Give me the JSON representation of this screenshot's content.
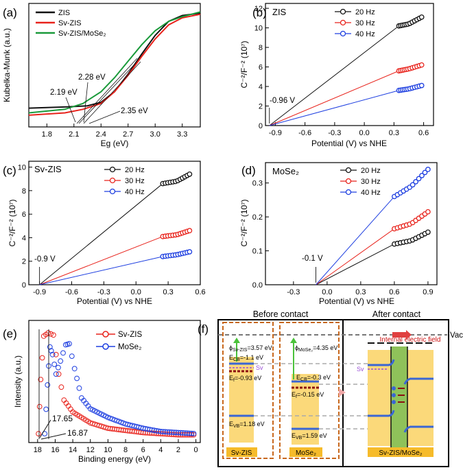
{
  "colors": {
    "black": "#111111",
    "red": "#e8221b",
    "green": "#1a9a3a",
    "blue": "#1d3ee0",
    "orange": "#c8671c",
    "yellow": "#fbd97a",
    "gold": "#f6bb2a",
    "lightgreen": "#8fc25a",
    "sv": "#9a4fd6",
    "darkred": "#8c1010"
  },
  "chart_data": [
    {
      "panel": "(a)",
      "type": "line",
      "xlabel": "Eg (eV)",
      "ylabel": "Kubelka-Munk (a.u.)",
      "xlim": [
        1.6,
        3.5
      ],
      "xticks": [
        "1.8",
        "2.1",
        "2.4",
        "2.7",
        "3.0",
        "3.3"
      ],
      "series": [
        {
          "name": "ZIS",
          "color": "black",
          "points": [
            [
              1.6,
              0.16
            ],
            [
              2.0,
              0.17
            ],
            [
              2.25,
              0.18
            ],
            [
              2.4,
              0.21
            ],
            [
              2.55,
              0.3
            ],
            [
              2.7,
              0.45
            ],
            [
              2.85,
              0.62
            ],
            [
              3.0,
              0.78
            ],
            [
              3.15,
              0.9
            ],
            [
              3.3,
              0.95
            ],
            [
              3.5,
              0.97
            ]
          ]
        },
        {
          "name": "Sv-ZIS",
          "color": "red",
          "points": [
            [
              1.6,
              0.1
            ],
            [
              2.0,
              0.12
            ],
            [
              2.2,
              0.15
            ],
            [
              2.4,
              0.2
            ],
            [
              2.55,
              0.3
            ],
            [
              2.7,
              0.44
            ],
            [
              2.85,
              0.6
            ],
            [
              3.0,
              0.75
            ],
            [
              3.15,
              0.87
            ],
            [
              3.3,
              0.93
            ],
            [
              3.5,
              0.96
            ]
          ]
        },
        {
          "name": "Sv-ZIS/MoSe₂",
          "color": "green",
          "points": [
            [
              1.6,
              0.12
            ],
            [
              2.0,
              0.15
            ],
            [
              2.2,
              0.2
            ],
            [
              2.4,
              0.3
            ],
            [
              2.55,
              0.42
            ],
            [
              2.7,
              0.56
            ],
            [
              2.85,
              0.7
            ],
            [
              3.0,
              0.82
            ],
            [
              3.15,
              0.9
            ],
            [
              3.3,
              0.94
            ],
            [
              3.5,
              0.98
            ]
          ]
        }
      ],
      "annotations": [
        "2.19 eV",
        "2.28 eV",
        "2.35 eV"
      ]
    },
    {
      "panel": "(b)",
      "type": "scatter",
      "label": "ZIS",
      "xlabel": "Potential (V) vs NHE",
      "ylabel": "C⁻²/F⁻² (10⁷)",
      "xlim": [
        -1.0,
        0.7
      ],
      "ylim": [
        0,
        12.5
      ],
      "xticks": [
        "-0.9",
        "-0.6",
        "-0.3",
        "0.0",
        "0.3",
        "0.6"
      ],
      "yticks": [
        "0",
        "2",
        "4",
        "6",
        "8",
        "10",
        "12"
      ],
      "intercept": -0.96,
      "intercept_label": "-0.96 V",
      "series": [
        {
          "name": "20 Hz",
          "color": "black",
          "x": [
            0.35,
            0.45,
            0.58
          ],
          "y": [
            10.2,
            10.4,
            11.1
          ]
        },
        {
          "name": "30 Hz",
          "color": "red",
          "x": [
            0.35,
            0.45,
            0.58
          ],
          "y": [
            5.6,
            5.8,
            6.2
          ]
        },
        {
          "name": "40 Hz",
          "color": "blue",
          "x": [
            0.35,
            0.45,
            0.58
          ],
          "y": [
            3.6,
            3.75,
            4.1
          ]
        }
      ]
    },
    {
      "panel": "(c)",
      "type": "scatter",
      "label": "Sv-ZIS",
      "xlabel": "Potential (V) vs NHE",
      "ylabel": "C⁻²/F⁻² (10⁷)",
      "xlim": [
        -1.0,
        0.6
      ],
      "ylim": [
        0,
        10.5
      ],
      "xticks": [
        "-0.9",
        "-0.6",
        "-0.3",
        "0.0",
        "0.3",
        "0.6"
      ],
      "yticks": [
        "0",
        "2",
        "4",
        "6",
        "8",
        "10"
      ],
      "intercept": -0.9,
      "intercept_label": "-0.9 V",
      "series": [
        {
          "name": "20 Hz",
          "color": "black",
          "x": [
            0.25,
            0.38,
            0.5
          ],
          "y": [
            8.6,
            8.8,
            9.4
          ]
        },
        {
          "name": "30 Hz",
          "color": "red",
          "x": [
            0.25,
            0.38,
            0.5
          ],
          "y": [
            4.1,
            4.25,
            4.6
          ]
        },
        {
          "name": "40 Hz",
          "color": "blue",
          "x": [
            0.25,
            0.38,
            0.5
          ],
          "y": [
            2.4,
            2.55,
            2.8
          ]
        }
      ]
    },
    {
      "panel": "(d)",
      "type": "scatter",
      "label": "MoSe₂",
      "xlabel": "Potential (V) vs NHE",
      "ylabel": "C⁻²/F⁻² (10⁷)",
      "xlim": [
        -0.55,
        0.98
      ],
      "ylim": [
        0,
        0.36
      ],
      "xticks": [
        "-0.3",
        "0.0",
        "0.3",
        "0.6",
        "0.9"
      ],
      "yticks": [
        "0.0",
        "0.1",
        "0.2",
        "0.3"
      ],
      "intercept": -0.1,
      "intercept_label": "-0.1 V",
      "series": [
        {
          "name": "20 Hz",
          "color": "black",
          "x": [
            0.6,
            0.75,
            0.9
          ],
          "y": [
            0.12,
            0.13,
            0.155
          ]
        },
        {
          "name": "30 Hz",
          "color": "red",
          "x": [
            0.6,
            0.75,
            0.9
          ],
          "y": [
            0.165,
            0.18,
            0.215
          ]
        },
        {
          "name": "40 Hz",
          "color": "blue",
          "x": [
            0.6,
            0.75,
            0.9
          ],
          "y": [
            0.26,
            0.29,
            0.34
          ]
        }
      ]
    },
    {
      "panel": "(e)",
      "type": "scatter",
      "xlabel": "Binding energy (eV)",
      "ylabel": "Intensity (a.u.)",
      "xlim": [
        19,
        -0.5
      ],
      "xticks": [
        "18",
        "16",
        "14",
        "12",
        "10",
        "8",
        "6",
        "4",
        "2",
        "0"
      ],
      "cutoffs": [
        "17.65",
        "16.87"
      ],
      "series": [
        {
          "name": "Sv-ZIS",
          "color": "red",
          "points": [
            [
              17.9,
              0.05
            ],
            [
              17.65,
              0.55
            ],
            [
              17.3,
              0.95
            ],
            [
              16.8,
              0.98
            ],
            [
              16.2,
              0.96
            ],
            [
              15.6,
              0.6
            ],
            [
              15.0,
              0.36
            ],
            [
              14.0,
              0.25
            ],
            [
              12.0,
              0.15
            ],
            [
              10.0,
              0.1
            ],
            [
              8.0,
              0.08
            ],
            [
              6.0,
              0.06
            ],
            [
              4.0,
              0.05
            ],
            [
              2.0,
              0.04
            ],
            [
              0.0,
              0.04
            ]
          ]
        },
        {
          "name": "MoSe₂",
          "color": "blue",
          "points": [
            [
              17.2,
              0.05
            ],
            [
              16.87,
              0.5
            ],
            [
              16.6,
              0.85
            ],
            [
              16.3,
              0.78
            ],
            [
              15.9,
              0.6
            ],
            [
              15.4,
              0.72
            ],
            [
              14.8,
              0.87
            ],
            [
              14.4,
              0.88
            ],
            [
              13.8,
              0.65
            ],
            [
              13.0,
              0.38
            ],
            [
              12.0,
              0.28
            ],
            [
              10.0,
              0.2
            ],
            [
              8.0,
              0.14
            ],
            [
              6.0,
              0.1
            ],
            [
              4.0,
              0.07
            ],
            [
              2.0,
              0.06
            ],
            [
              0.0,
              0.05
            ]
          ]
        }
      ]
    }
  ],
  "panel_f": {
    "panel_label": "(f)",
    "before_title": "Before contact",
    "after_title": "After contact",
    "vac": "Vac",
    "sv": "Sv",
    "svzis_phi_sub": "Sv-ZIS",
    "svzis_phi_val": "=3.57 eV",
    "svzis_ecb": "=-1.1 eV",
    "svzis_ef": "=-0.93 eV",
    "svzis_evb": "=1.18 eV",
    "mose2_phi_sub": "MoSe",
    "mose2_phi_val": "=4.35 eV",
    "mose2_ecb": "=-0.3 eV",
    "mose2_ef": "=-0.15 eV",
    "mose2_evb": "=1.59 eV",
    "label_svzis": "Sv-ZIS",
    "label_mose2": "MoSe",
    "label_combo": "Sv-ZIS/MoSe",
    "field_label": "Internal electric field"
  }
}
